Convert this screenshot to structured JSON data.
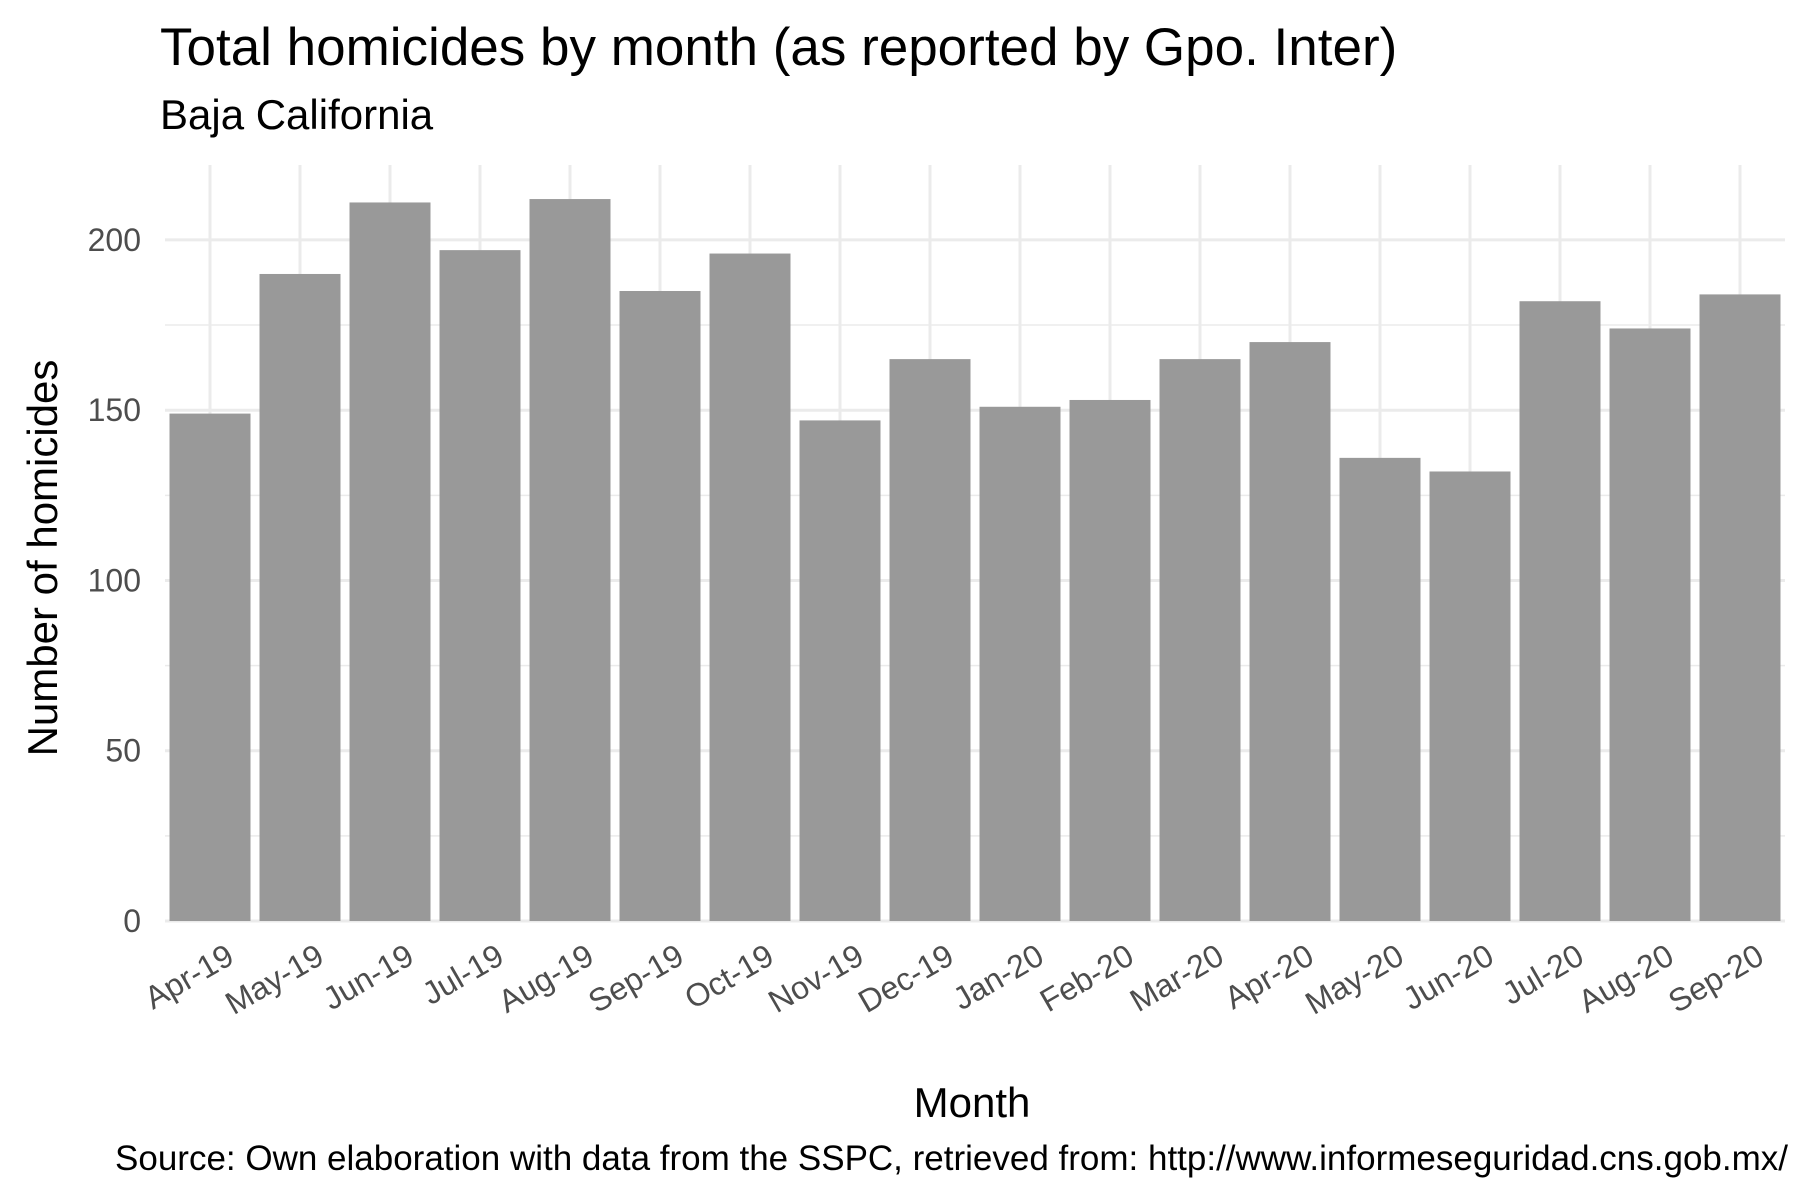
{
  "chart_data": {
    "type": "bar",
    "title": "Total homicides by month (as reported by Gpo. Inter)",
    "subtitle": "Baja California",
    "xlabel": "Month",
    "ylabel": "Number of homicides",
    "caption": "Source: Own elaboration with data from the SSPC, retrieved from: http://www.informeseguridad.cns.gob.mx/",
    "categories": [
      "Apr-19",
      "May-19",
      "Jun-19",
      "Jul-19",
      "Aug-19",
      "Sep-19",
      "Oct-19",
      "Nov-19",
      "Dec-19",
      "Jan-20",
      "Feb-20",
      "Mar-20",
      "Apr-20",
      "May-20",
      "Jun-20",
      "Jul-20",
      "Aug-20",
      "Sep-20"
    ],
    "values": [
      149,
      190,
      211,
      197,
      212,
      185,
      196,
      147,
      165,
      151,
      153,
      165,
      170,
      136,
      132,
      182,
      174,
      184
    ],
    "ylim": [
      0,
      222
    ],
    "yticks": [
      0,
      50,
      100,
      150,
      200
    ],
    "grid": true,
    "legend": "none",
    "bar_color": "#999999",
    "grid_color": "#ebebeb"
  }
}
